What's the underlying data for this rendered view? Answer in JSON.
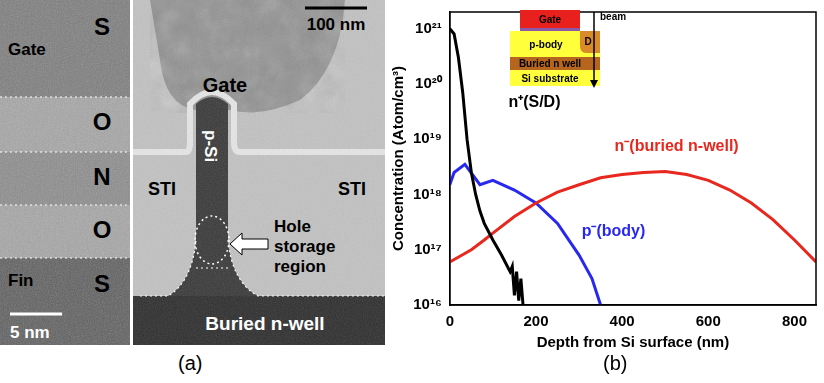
{
  "panel_a": {
    "label": "(a)",
    "left_image": {
      "layer_letters": [
        "S",
        "O",
        "N",
        "O",
        "S"
      ],
      "top_label": "Gate",
      "bottom_label": "Fin",
      "scale_bar": "5 nm"
    },
    "right_image": {
      "scale_bar": "100 nm",
      "gate": "Gate",
      "fin": "p-Si",
      "isolation": [
        "STI",
        "STI"
      ],
      "hole_storage": [
        "Hole",
        "storage",
        "region"
      ],
      "well": "Buried n-well"
    }
  },
  "panel_b": {
    "label": "(b)",
    "inset": {
      "gate": "Gate",
      "drain": "D",
      "beam": "beam",
      "body": "p-body",
      "well": "Buried n well",
      "substrate": "Si substrate"
    }
  },
  "chart_data": {
    "type": "line",
    "x_label": "Depth from Si surface (nm)",
    "y_label": "Concentration (Atom/cm³)",
    "log": "y",
    "grid": false,
    "xlim": [
      0,
      850
    ],
    "xticks": [
      0,
      200,
      400,
      600,
      800
    ],
    "ylim": [
      1e+16,
      2e+21
    ],
    "yticks": [
      {
        "value": 1e+16,
        "label": "10¹⁶"
      },
      {
        "value": 1e+17,
        "label": "10¹⁷"
      },
      {
        "value": 1e+18,
        "label": "10¹⁸"
      },
      {
        "value": 1e+19,
        "label": "10¹⁹"
      },
      {
        "value": 1e+20,
        "label": "10²⁰"
      },
      {
        "value": 1e+21,
        "label": "10²¹"
      }
    ],
    "series": [
      {
        "name": "n⁺(S/D)",
        "color": "#000000",
        "x": [
          0,
          10,
          20,
          30,
          40,
          50,
          60,
          70,
          80,
          100,
          120,
          140,
          145,
          150,
          155,
          160,
          165,
          170
        ],
        "values": [
          1e+21,
          8e+20,
          3e+20,
          7e+19,
          1e+19,
          2.5e+18,
          1e+18,
          5e+17,
          3e+17,
          1.5e+17,
          8e+16,
          4e+16,
          5e+16,
          1.5e+16,
          4e+16,
          1.2e+16,
          3e+16,
          1e+16
        ]
      },
      {
        "name": "n⁻(buried n-well)",
        "color": "#e8281e",
        "x": [
          0,
          50,
          80,
          100,
          150,
          200,
          250,
          300,
          350,
          400,
          450,
          500,
          550,
          600,
          650,
          700,
          750,
          800,
          850
        ],
        "values": [
          6e+16,
          1e+17,
          1.5e+17,
          2e+17,
          4e+17,
          7e+17,
          1.1e+18,
          1.5e+18,
          2e+18,
          2.3e+18,
          2.5e+18,
          2.6e+18,
          2.3e+18,
          1.8e+18,
          1.2e+18,
          7e+17,
          3.5e+17,
          1.5e+17,
          6e+16
        ]
      },
      {
        "name": "p⁻(body)",
        "color": "#2828f0",
        "x": [
          0,
          10,
          35,
          70,
          100,
          150,
          200,
          250,
          300,
          330,
          350
        ],
        "values": [
          1.5e+18,
          2.5e+18,
          3.5e+18,
          1.5e+18,
          1.8e+18,
          1.2e+18,
          7e+17,
          3e+17,
          8e+16,
          3e+16,
          1e+16
        ]
      }
    ]
  }
}
